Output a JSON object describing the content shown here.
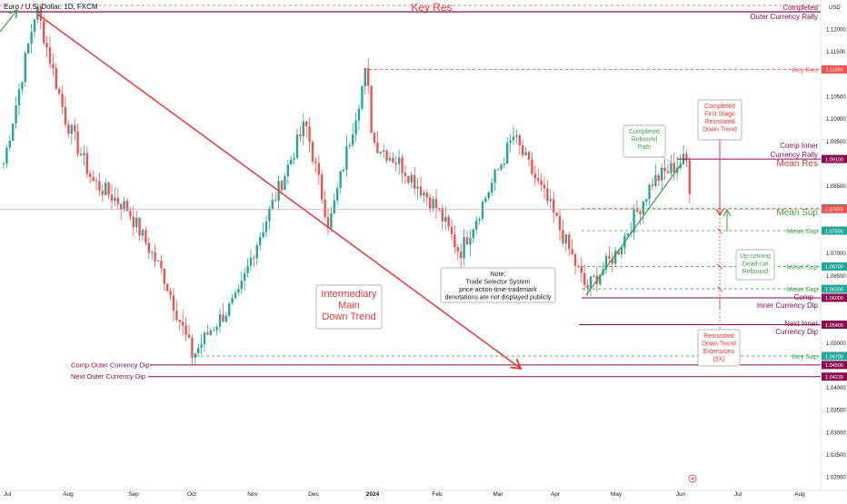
{
  "header": {
    "symbol_title": "Euro / U.S. Dollar, 1D, FXCM",
    "currency": "USD"
  },
  "colors": {
    "up": "#26a69a",
    "down": "#ef5350",
    "resistance": "#880e4f",
    "red": "#e53935",
    "green": "#43a047",
    "price_tag": "#ef5350",
    "dark_tag": "#880e4f"
  },
  "chart_data": {
    "type": "candlestick",
    "title": "",
    "xlabel": "",
    "ylabel": "",
    "ylim": [
      1.017,
      1.1265
    ],
    "x_tick_labels": [
      "Jul",
      "Aug",
      "Sep",
      "Oct",
      "Nov",
      "Dec",
      "2024",
      "Feb",
      "Mar",
      "Apr",
      "May",
      "Jun",
      "Jul",
      "Aug"
    ],
    "y_tick_labels": [
      "1.12000",
      "1.11500",
      "1.10500",
      "1.10000",
      "1.09500",
      "1.08500",
      "1.07000",
      "1.06500",
      "1.05000",
      "1.04000",
      "1.03500",
      "1.03000",
      "1.02500",
      "1.02000"
    ],
    "y_ticks": [
      1.12,
      1.115,
      1.105,
      1.1,
      1.095,
      1.085,
      1.07,
      1.065,
      1.05,
      1.04,
      1.035,
      1.03,
      1.025,
      1.02
    ],
    "grid": false,
    "price_anchors": [
      {
        "label": "Jul",
        "c": 1.09
      },
      {
        "label": "Jul 18",
        "c": 1.125
      },
      {
        "label": "Aug",
        "c": 1.1
      },
      {
        "label": "Aug 20",
        "c": 1.086
      },
      {
        "label": "Sep",
        "c": 1.08
      },
      {
        "label": "Sep 20",
        "c": 1.065
      },
      {
        "label": "Oct 3",
        "c": 1.047
      },
      {
        "label": "Oct 13",
        "c": 1.053
      },
      {
        "label": "Oct 30",
        "c": 1.06
      },
      {
        "label": "Nov",
        "c": 1.07
      },
      {
        "label": "Nov 29",
        "c": 1.099
      },
      {
        "label": "Dec 8",
        "c": 1.076
      },
      {
        "label": "Dec 28",
        "c": 1.111
      },
      {
        "label": "2024",
        "c": 1.095
      },
      {
        "label": "Jan 15",
        "c": 1.09
      },
      {
        "label": "Feb",
        "c": 1.08
      },
      {
        "label": "Feb 14",
        "c": 1.07
      },
      {
        "label": "Mar 8",
        "c": 1.096
      },
      {
        "label": "Apr",
        "c": 1.08
      },
      {
        "label": "Apr 16",
        "c": 1.062
      },
      {
        "label": "May",
        "c": 1.07
      },
      {
        "label": "May 22",
        "c": 1.086
      },
      {
        "label": "Jun 4",
        "c": 1.091
      },
      {
        "label": "Jun 7",
        "c": 1.0797
      }
    ],
    "horizontal_levels": [
      {
        "name": "Key Res",
        "value": 1.111,
        "tag": "1.11100"
      },
      {
        "name": "Comp Inner Currency Rally",
        "value": 1.091,
        "tag": "1.09100"
      },
      {
        "name": "Mean Sup",
        "value": 1.08,
        "tag": "1.08000"
      },
      {
        "name": "Mean Sup",
        "value": 1.075,
        "tag": "1.07500"
      },
      {
        "name": "Mean Sup",
        "value": 1.067,
        "tag": "1.06700"
      },
      {
        "name": "Mean Sup",
        "value": 1.062,
        "tag": "1.06200"
      },
      {
        "name": "Comp Inner Currency Dip",
        "value": 1.06,
        "tag": "1.06000"
      },
      {
        "name": "Next Inner Currency Dip",
        "value": 1.054,
        "tag": "1.05400"
      },
      {
        "name": "Key Sup",
        "value": 1.047,
        "tag": "1.04700"
      },
      {
        "name": "Comp Outer Currency Dip",
        "value": 1.045,
        "tag": "1.04500"
      },
      {
        "name": "Next Outer Currency Dip",
        "value": 1.0424,
        "tag": "1.04239"
      }
    ],
    "last_price": {
      "value": 1.0798,
      "tag": "1.07976"
    },
    "annotations": {
      "key_res_top": "Key Res",
      "completed_outer": [
        "Completed",
        "Outer Currency Rally"
      ],
      "key_res_right": "Key Res",
      "comp_inner": [
        "Comp Inner",
        "Currency Rally"
      ],
      "mean_res": "Mean Res",
      "mean_sup_big": "Mean Sup",
      "mean_sup": "Mean Sup",
      "comp_inner_dip": [
        "Comp",
        "Inner Currency Dip"
      ],
      "next_inner_dip": [
        "Next Inner",
        "Currency Dip"
      ],
      "key_sup": "Key Sup",
      "comp_outer_dip": "Comp Outer Currency Dip",
      "next_outer_dip": "Next Outer Currency Dip",
      "intermediary": [
        "Intermediary",
        "Main",
        "Down Trend"
      ],
      "note": [
        "Note:",
        "Trade Selector System",
        "price-action-time-trademark",
        "denotations are not displayed publicly"
      ],
      "completed_rebound": [
        "Completed",
        "Rebound",
        "Path"
      ],
      "completed_first_stage": [
        "Completed",
        "First Stage",
        "Reinstated",
        "Down Trend"
      ],
      "upcoming": [
        "Up-coming",
        "Dead-cat",
        "Rebound"
      ],
      "reinstated": [
        "Reinstated",
        "Down Trend",
        "Extensions",
        "(3X)"
      ]
    }
  }
}
